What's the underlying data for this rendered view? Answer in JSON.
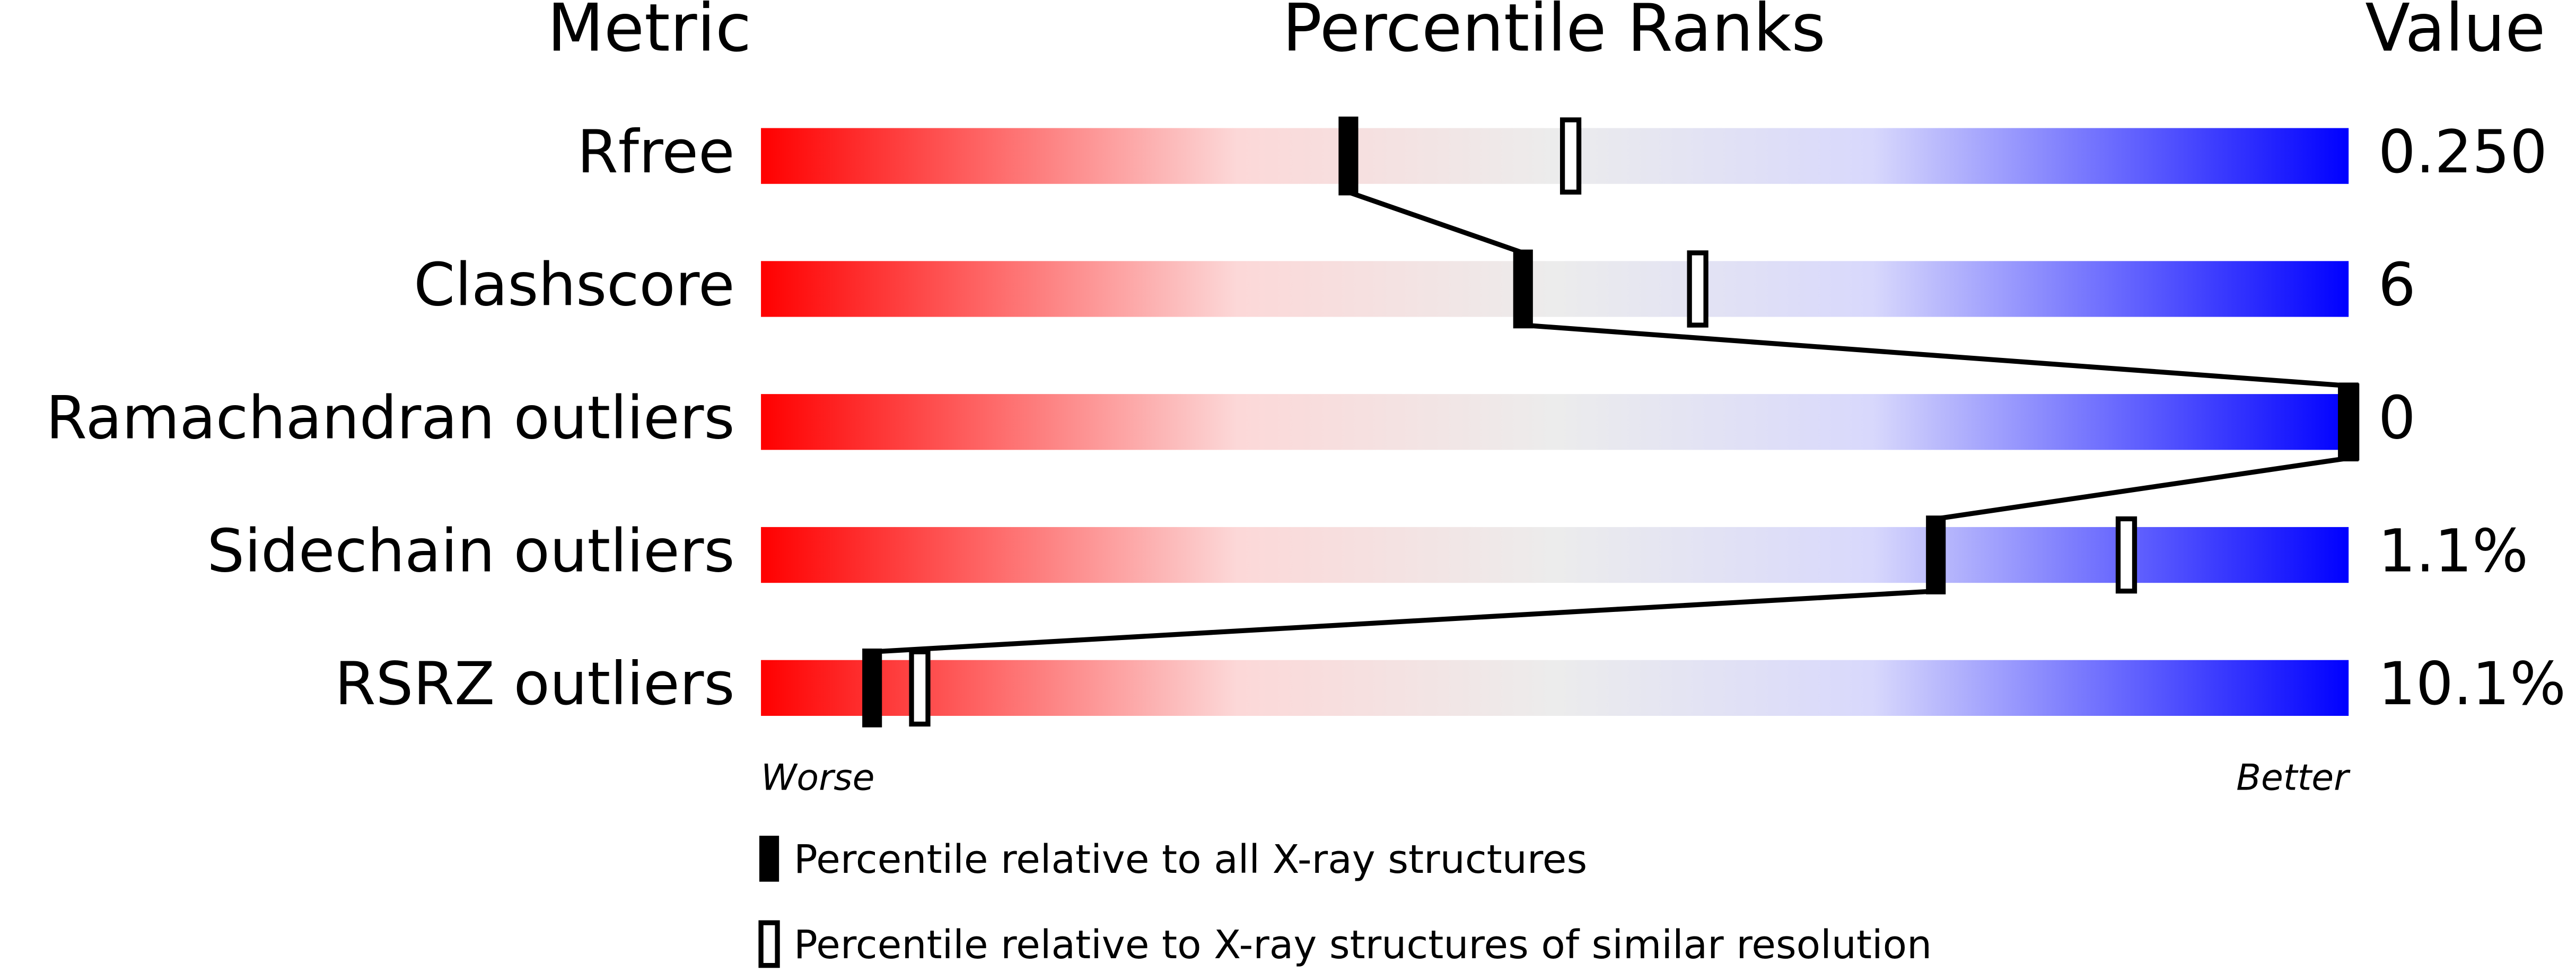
{
  "chart_data": {
    "type": "percentile",
    "headers": [
      "Metric",
      "Percentile Ranks",
      "Value"
    ],
    "categories": [
      "Rfree",
      "Clashscore",
      "Ramachandran outliers",
      "Sidechain outliers",
      "RSRZ outliers"
    ],
    "printed_values": [
      "0.250",
      "6",
      "0",
      "1.1%",
      "10.1%"
    ],
    "series": [
      {
        "name": "Percentile relative to all X-ray structures",
        "color": "#000000",
        "values": [
          37,
          48,
          100,
          74,
          7
        ]
      },
      {
        "name": "Percentile relative to X-ray structures of similar resolution",
        "color": "#000000",
        "values": [
          51,
          59,
          100,
          86,
          10
        ]
      }
    ],
    "xlim": [
      0,
      100
    ],
    "axis_end_labels": [
      "Worse",
      "Better"
    ]
  }
}
